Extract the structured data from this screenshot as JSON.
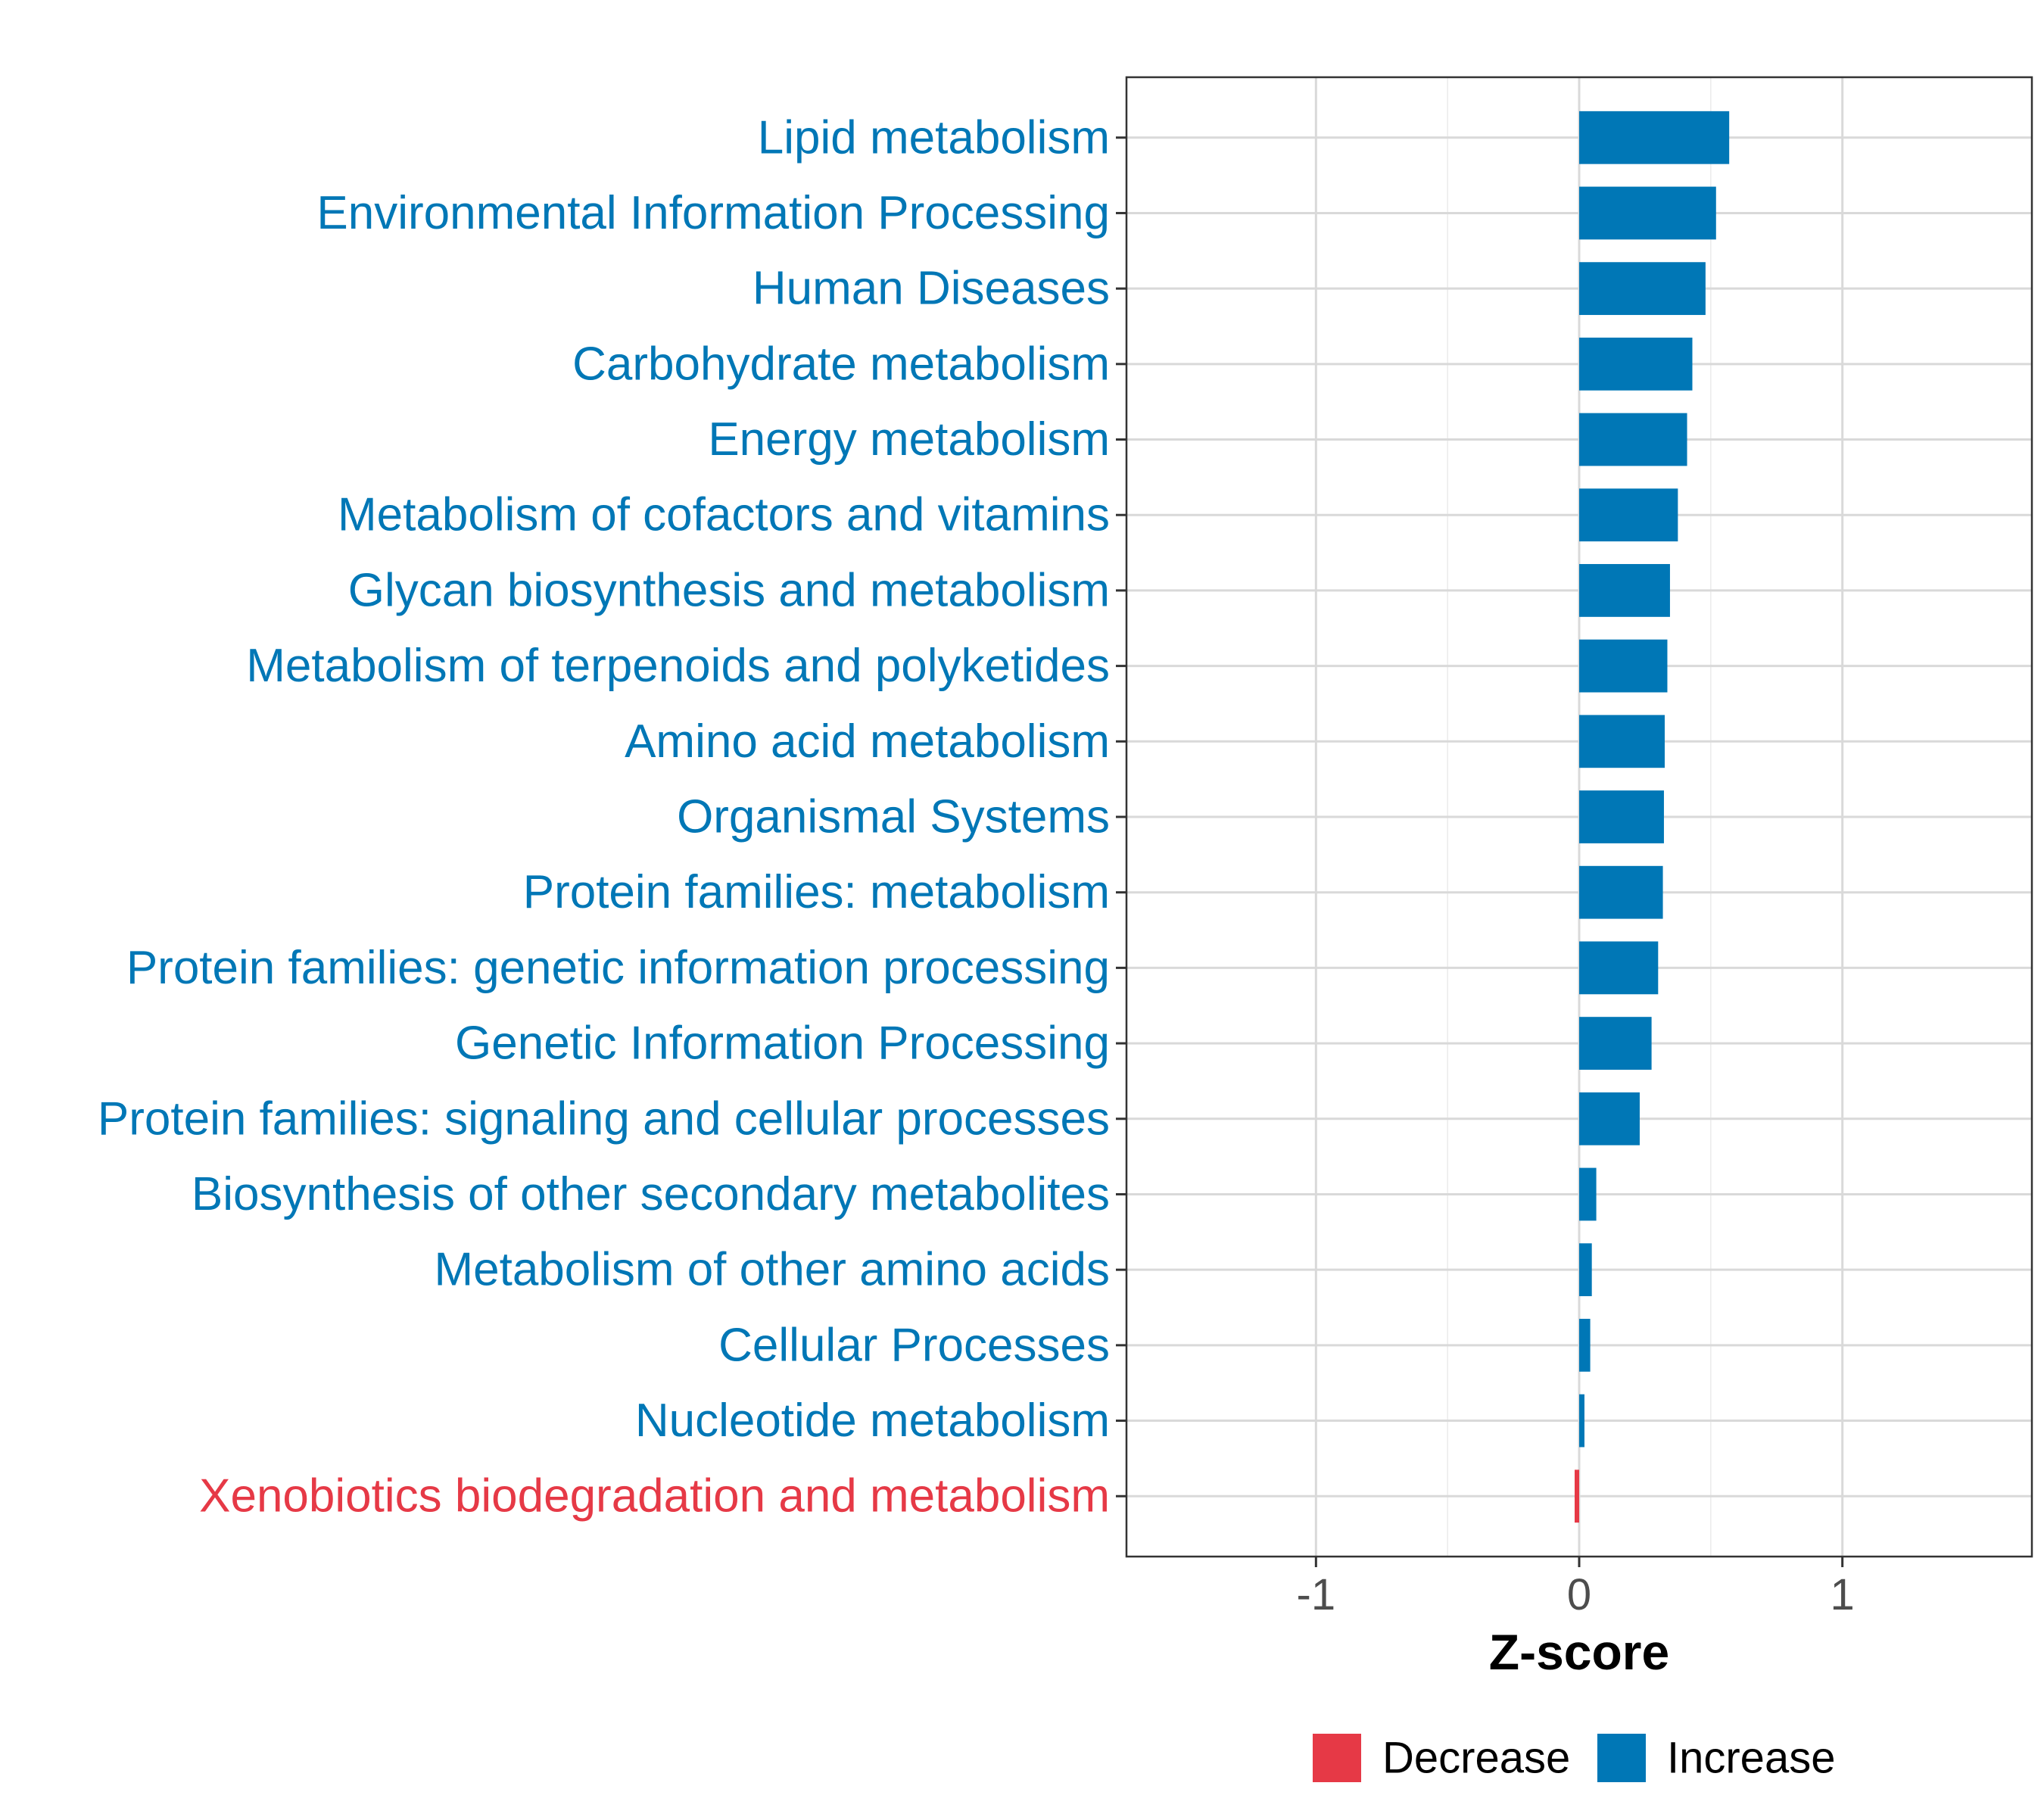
{
  "chart_data": {
    "type": "bar",
    "orientation": "horizontal",
    "xlabel": "Z-score",
    "xlim": [
      -1.72,
      1.72
    ],
    "xticks": [
      -1,
      0,
      1
    ],
    "xtick_labels": [
      "-1",
      "0",
      "1"
    ],
    "grid": true,
    "legend_position": "bottom",
    "legend": [
      {
        "name": "Decrease",
        "color": "#E63946"
      },
      {
        "name": "Increase",
        "color": "#0077B6"
      }
    ],
    "categories": [
      {
        "label": "Lipid metabolism",
        "value": 0.57,
        "group": "Increase"
      },
      {
        "label": "Environmental Information Processing",
        "value": 0.52,
        "group": "Increase"
      },
      {
        "label": "Human Diseases",
        "value": 0.48,
        "group": "Increase"
      },
      {
        "label": "Carbohydrate metabolism",
        "value": 0.43,
        "group": "Increase"
      },
      {
        "label": "Energy metabolism",
        "value": 0.41,
        "group": "Increase"
      },
      {
        "label": "Metabolism of cofactors and vitamins",
        "value": 0.375,
        "group": "Increase"
      },
      {
        "label": "Glycan biosynthesis and metabolism",
        "value": 0.345,
        "group": "Increase"
      },
      {
        "label": "Metabolism of terpenoids and polyketides",
        "value": 0.335,
        "group": "Increase"
      },
      {
        "label": "Amino acid metabolism",
        "value": 0.325,
        "group": "Increase"
      },
      {
        "label": "Organismal Systems",
        "value": 0.322,
        "group": "Increase"
      },
      {
        "label": "Protein families: metabolism",
        "value": 0.318,
        "group": "Increase"
      },
      {
        "label": "Protein families: genetic information processing",
        "value": 0.3,
        "group": "Increase"
      },
      {
        "label": "Genetic Information Processing",
        "value": 0.275,
        "group": "Increase"
      },
      {
        "label": "Protein families: signaling and cellular processes",
        "value": 0.23,
        "group": "Increase"
      },
      {
        "label": "Biosynthesis of other secondary metabolites",
        "value": 0.065,
        "group": "Increase"
      },
      {
        "label": "Metabolism of other amino acids",
        "value": 0.048,
        "group": "Increase"
      },
      {
        "label": "Cellular Processes",
        "value": 0.042,
        "group": "Increase"
      },
      {
        "label": "Nucleotide metabolism",
        "value": 0.02,
        "group": "Increase"
      },
      {
        "label": "Xenobiotics biodegradation and metabolism",
        "value": -0.012,
        "group": "Decrease"
      }
    ]
  }
}
